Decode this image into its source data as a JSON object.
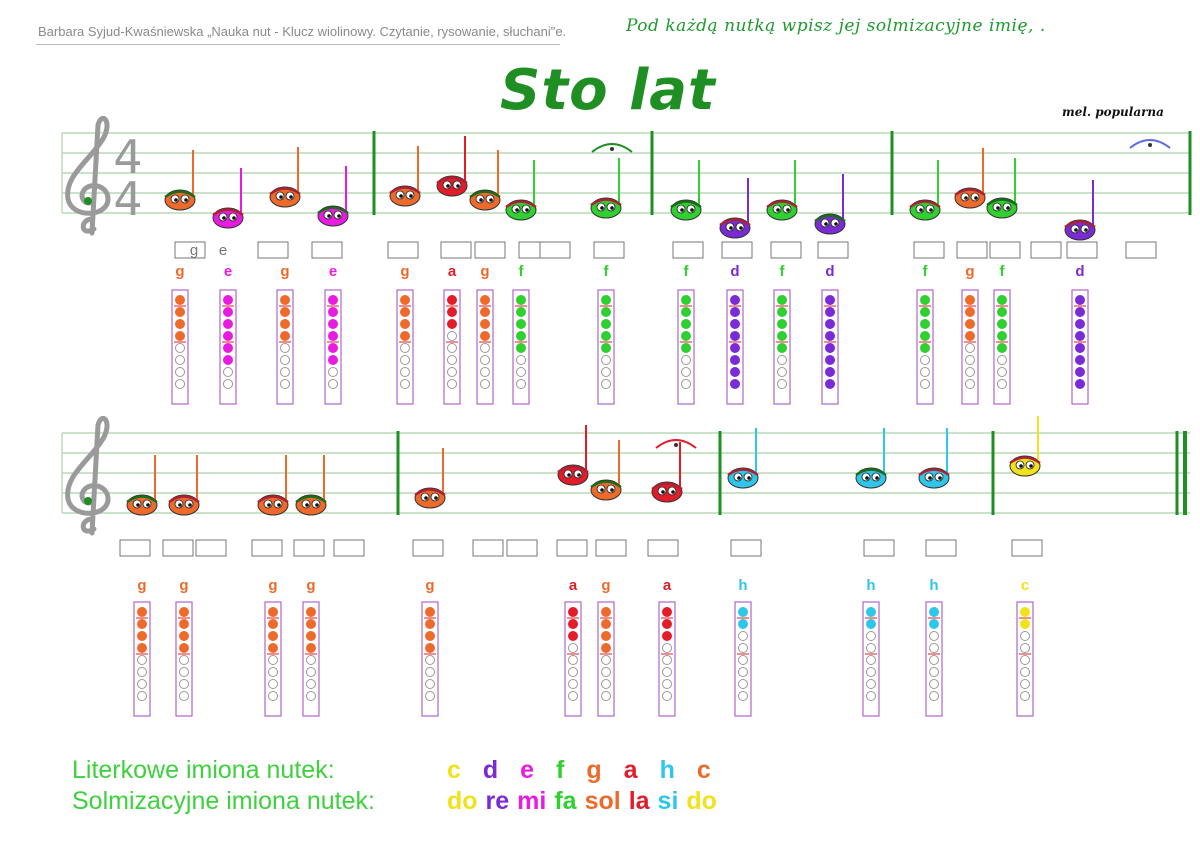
{
  "header": {
    "author": "Barbara Syjud-Kwaśniewska „Nauka nut - Klucz wiolinowy. Czytanie, rysowanie, słuchani\"e.",
    "instruction": "Pod każdą nutką wpisz jej solmizacyjne imię, .",
    "title": "Sto lat",
    "composer": "mel. popularna"
  },
  "time_signature": {
    "top": "4",
    "bottom": "4"
  },
  "sample_answers": [
    "g",
    "e"
  ],
  "colors": {
    "c": "#f2e21b",
    "d": "#7a2bd6",
    "e": "#e81ce0",
    "f": "#2fd02f",
    "g": "#ee6a2a",
    "a": "#e21d2a",
    "h": "#2fc6ea",
    "staff": "#b9d9b9",
    "bar": "#1f8f23"
  },
  "fingerings": {
    "c": [
      2,
      2
    ],
    "d": [
      8,
      0
    ],
    "e": [
      6,
      0
    ],
    "f": [
      5,
      0
    ],
    "g": [
      4,
      0
    ],
    "a": [
      3,
      0
    ],
    "h": [
      2,
      0
    ]
  },
  "line1": {
    "notes": [
      "g",
      "e",
      "g",
      "e",
      "g",
      "a",
      "g",
      "f",
      "f",
      "f",
      "d",
      "f",
      "d",
      "f",
      "g",
      "f",
      "d"
    ]
  },
  "line2": {
    "notes": [
      "g",
      "g",
      "g",
      "g",
      "g",
      "a",
      "g",
      "a",
      "h",
      "h",
      "h",
      "c"
    ]
  },
  "legend": {
    "letter_label": "Literkowe imiona nutek:",
    "solfege_label": "Solmizacyjne imiona nutek:",
    "letters": [
      "c",
      "d",
      "e",
      "f",
      "g",
      "a",
      "h",
      "c"
    ],
    "solfege": [
      "do",
      "re",
      "mi",
      "fa",
      "sol",
      "la",
      "si",
      "do"
    ],
    "letter_colors": [
      "#f2e21b",
      "#7a2bd6",
      "#e81ce0",
      "#2fd02f",
      "#ee6a2a",
      "#e21d2a",
      "#2fc6ea",
      "#ee6a2a"
    ],
    "solfege_colors": [
      "#f2e21b",
      "#7a2bd6",
      "#e81ce0",
      "#2fd02f",
      "#ee6a2a",
      "#e21d2a",
      "#2fc6ea",
      "#f2e21b"
    ]
  }
}
